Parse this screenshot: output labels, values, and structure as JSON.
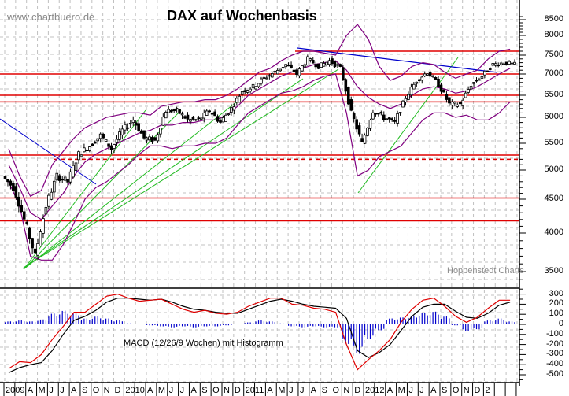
{
  "header": {
    "watermark": "www.chartbuero.de",
    "title": "DAX auf Wochenbasis",
    "credit": "Hoppenstedt Charts"
  },
  "macd_panel": {
    "label": "MACD (12/26/9 Wochen) mit Histogramm"
  },
  "colors": {
    "candle": "#000000",
    "support_resistance": "#e00000",
    "bollinger": "#800080",
    "trendline_green": "#22bb22",
    "trendline_blue": "#0000cc",
    "macd_line": "#e00000",
    "signal_line": "#000000",
    "histogram": "#0000cc",
    "grid": "#c0c0c0"
  },
  "chart_data": [
    {
      "type": "candlestick",
      "title": "DAX auf Wochenbasis",
      "xlabel": "",
      "ylabel": "",
      "x_tick_labels": [
        "2009",
        "A",
        "M",
        "J",
        "J",
        "A",
        "S",
        "O",
        "N",
        "D",
        "2010",
        "A",
        "M",
        "J",
        "J",
        "A",
        "S",
        "O",
        "N",
        "D",
        "2011",
        "A",
        "M",
        "J",
        "J",
        "A",
        "S",
        "O",
        "N",
        "D",
        "2012",
        "A",
        "M",
        "J",
        "J",
        "A",
        "S",
        "O",
        "N",
        "D",
        "2"
      ],
      "y_tick_labels": [
        "3500",
        "4000",
        "4500",
        "5000",
        "5500",
        "6000",
        "6500",
        "7000",
        "7500",
        "8000",
        "8500"
      ],
      "ylim": [
        3300,
        8700
      ],
      "grid": true,
      "horizontal_lines": [
        {
          "value": 7600,
          "style": "solid",
          "color": "red"
        },
        {
          "value": 7000,
          "style": "solid",
          "color": "red"
        },
        {
          "value": 6500,
          "style": "solid",
          "color": "red"
        },
        {
          "value": 6350,
          "style": "solid",
          "color": "red"
        },
        {
          "value": 5280,
          "style": "solid",
          "color": "red"
        },
        {
          "value": 5200,
          "style": "dashed",
          "color": "red"
        },
        {
          "value": 4520,
          "style": "solid",
          "color": "red"
        },
        {
          "value": 4180,
          "style": "solid",
          "color": "red"
        }
      ],
      "series": [
        {
          "name": "DAX weekly close (approx.)",
          "x": [
            "2009-01",
            "2009-02",
            "2009-03",
            "2009-04",
            "2009-05",
            "2009-06",
            "2009-07",
            "2009-08",
            "2009-09",
            "2009-10",
            "2009-11",
            "2009-12",
            "2010-01",
            "2010-02",
            "2010-03",
            "2010-04",
            "2010-05",
            "2010-06",
            "2010-07",
            "2010-08",
            "2010-09",
            "2010-10",
            "2010-11",
            "2010-12",
            "2011-01",
            "2011-02",
            "2011-03",
            "2011-04",
            "2011-05",
            "2011-06",
            "2011-07",
            "2011-08",
            "2011-09",
            "2011-10",
            "2011-11",
            "2011-12",
            "2012-01",
            "2012-02",
            "2012-03",
            "2012-04",
            "2012-05",
            "2012-06",
            "2012-07",
            "2012-08",
            "2012-09",
            "2012-10",
            "2012-11"
          ],
          "values": [
            4700,
            4200,
            3700,
            4400,
            4900,
            4800,
            5300,
            5450,
            5650,
            5400,
            5750,
            5950,
            5600,
            5550,
            6150,
            6150,
            5950,
            5950,
            6150,
            5900,
            6200,
            6600,
            6700,
            6900,
            7050,
            7250,
            7000,
            7400,
            7200,
            7350,
            7150,
            6100,
            5500,
            6150,
            6000,
            5900,
            6450,
            6850,
            7050,
            6750,
            6300,
            6300,
            6750,
            6950,
            7250,
            7300,
            7250
          ]
        },
        {
          "name": "Bollinger upper (approx.)",
          "values": [
            5400,
            4900,
            4550,
            4650,
            5100,
            5350,
            5600,
            5800,
            5900,
            6000,
            6050,
            6100,
            6100,
            6050,
            6250,
            6300,
            6350,
            6350,
            6400,
            6400,
            6500,
            6650,
            6850,
            7050,
            7150,
            7350,
            7500,
            7600,
            7600,
            7550,
            7500,
            8000,
            8350,
            7900,
            7200,
            6850,
            6950,
            7200,
            7300,
            7250,
            7050,
            6900,
            7000,
            7100,
            7400,
            7600,
            7650
          ]
        },
        {
          "name": "Bollinger middle (approx.)",
          "values": [
            5100,
            4700,
            4300,
            4200,
            4400,
            4600,
            4900,
            5150,
            5300,
            5400,
            5500,
            5600,
            5700,
            5750,
            5850,
            5850,
            5900,
            5900,
            5950,
            5950,
            6050,
            6250,
            6500,
            6650,
            6800,
            6950,
            7050,
            7150,
            7250,
            7300,
            7350,
            7100,
            6700,
            6450,
            6300,
            6200,
            6300,
            6500,
            6650,
            6700,
            6650,
            6550,
            6600,
            6700,
            6850,
            7000,
            7150
          ]
        },
        {
          "name": "Bollinger lower (approx.)",
          "values": [
            4800,
            4400,
            3700,
            3650,
            3650,
            3850,
            4150,
            4500,
            4700,
            4800,
            4950,
            5100,
            5300,
            5450,
            5450,
            5400,
            5450,
            5450,
            5500,
            5500,
            5600,
            5850,
            6100,
            6250,
            6400,
            6550,
            6600,
            6700,
            6850,
            6950,
            7000,
            6100,
            4900,
            5000,
            5250,
            5350,
            5450,
            5700,
            5950,
            6100,
            6100,
            6000,
            6050,
            5950,
            5950,
            6100,
            6350
          ]
        }
      ]
    },
    {
      "type": "line",
      "title": "MACD (12/26/9 Wochen) mit Histogramm",
      "y_tick_labels": [
        "300",
        "200",
        "100",
        "0",
        "-100",
        "-200",
        "-300",
        "-400",
        "-500"
      ],
      "ylim": [
        -580,
        360
      ],
      "grid": true,
      "x": [
        "2009-01",
        "2009-02",
        "2009-03",
        "2009-04",
        "2009-05",
        "2009-06",
        "2009-07",
        "2009-08",
        "2009-09",
        "2009-10",
        "2009-11",
        "2009-12",
        "2010-01",
        "2010-02",
        "2010-03",
        "2010-04",
        "2010-05",
        "2010-06",
        "2010-07",
        "2010-08",
        "2010-09",
        "2010-10",
        "2010-11",
        "2010-12",
        "2011-01",
        "2011-02",
        "2011-03",
        "2011-04",
        "2011-05",
        "2011-06",
        "2011-07",
        "2011-08",
        "2011-09",
        "2011-10",
        "2011-11",
        "2011-12",
        "2012-01",
        "2012-02",
        "2012-03",
        "2012-04",
        "2012-05",
        "2012-06",
        "2012-07",
        "2012-08",
        "2012-09",
        "2012-10",
        "2012-11"
      ],
      "series": [
        {
          "name": "MACD",
          "color": "red",
          "values": [
            -440,
            -370,
            -380,
            -300,
            -150,
            -20,
            120,
            120,
            200,
            280,
            300,
            260,
            230,
            240,
            250,
            200,
            150,
            120,
            140,
            110,
            100,
            120,
            180,
            220,
            260,
            260,
            200,
            190,
            160,
            150,
            120,
            -200,
            -450,
            -350,
            -260,
            -150,
            20,
            150,
            240,
            260,
            180,
            80,
            20,
            70,
            160,
            240,
            240
          ]
        },
        {
          "name": "Signal",
          "color": "black",
          "values": [
            -480,
            -430,
            -400,
            -380,
            -260,
            -100,
            40,
            80,
            140,
            220,
            260,
            260,
            250,
            240,
            250,
            220,
            180,
            150,
            140,
            120,
            110,
            110,
            150,
            190,
            230,
            250,
            230,
            200,
            180,
            170,
            160,
            60,
            -260,
            -330,
            -280,
            -200,
            -60,
            80,
            170,
            200,
            200,
            130,
            70,
            60,
            110,
            190,
            220
          ]
        },
        {
          "name": "Histogram",
          "color": "blue",
          "values": [
            30,
            40,
            30,
            50,
            110,
            140,
            120,
            60,
            80,
            60,
            40,
            10,
            0,
            -10,
            -20,
            -30,
            -20,
            -30,
            -20,
            -20,
            -10,
            0,
            20,
            40,
            30,
            10,
            -20,
            -30,
            -20,
            -30,
            -30,
            -200,
            -300,
            -150,
            -60,
            60,
            70,
            90,
            120,
            130,
            80,
            -10,
            -70,
            -50,
            40,
            60,
            30
          ]
        }
      ]
    }
  ]
}
